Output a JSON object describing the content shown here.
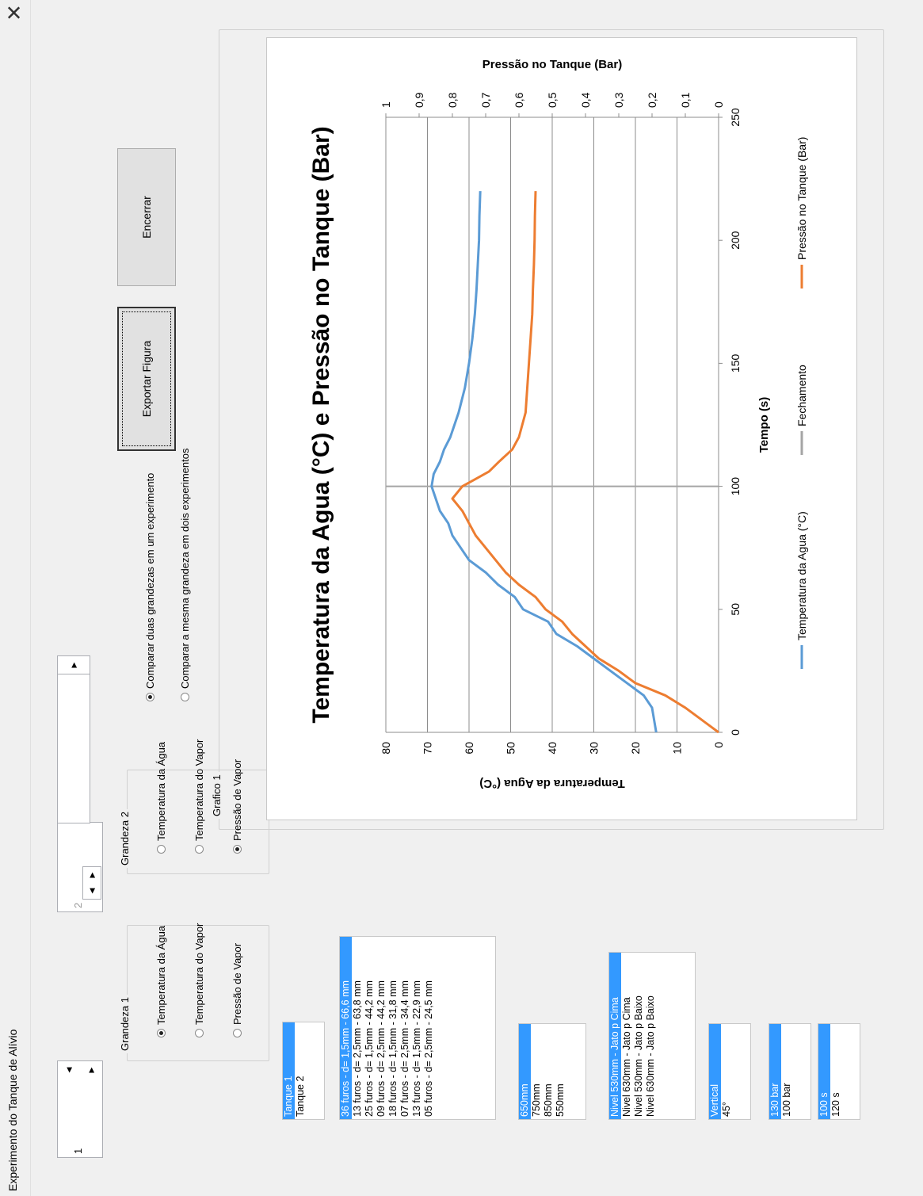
{
  "window": {
    "title": "Experimento do Tanque de Alívio",
    "close_icon": "close-icon"
  },
  "spinners": {
    "left_value": "1",
    "right_value": "2"
  },
  "grandeza1": {
    "label": "Grandeza 1",
    "options": [
      {
        "label": "Temperatura da Água",
        "checked": true
      },
      {
        "label": "Temperatura do Vapor",
        "checked": false
      },
      {
        "label": "Pressão de Vapor",
        "checked": false
      }
    ]
  },
  "grandeza2": {
    "label": "Grandeza 2",
    "options": [
      {
        "label": "Temperatura da Água",
        "checked": false
      },
      {
        "label": "Temperatura do Vapor",
        "checked": false
      },
      {
        "label": "Pressão de Vapor",
        "checked": true
      }
    ]
  },
  "compare": {
    "options": [
      {
        "label": "Comparar duas grandezas em um experimento",
        "checked": true
      },
      {
        "label": "Comparar a mesma grandeza em dois experimentos",
        "checked": false
      }
    ]
  },
  "lists": {
    "tanque": {
      "items": [
        "Tanque 1",
        "Tanque 2"
      ],
      "selected": 0
    },
    "furos": {
      "items": [
        "36 furos - d= 1,5mm - 66,6 mm",
        "13 furos - d= 2,5mm - 63,8 mm",
        "25 furos - d= 1,5mm - 44,2 mm",
        "09 furos - d= 2,5mm - 44,2 mm",
        "18 furos - d= 1,5mm - 31,8 mm",
        "07 furos - d= 2,5mm - 34,4 mm",
        "13 furos - d= 1,5mm - 22,9 mm",
        "05 furos - d= 2,5mm - 24,5 mm"
      ],
      "selected": 0
    },
    "profundidade": {
      "items": [
        "650mm",
        "750mm",
        "850mm",
        "550mm"
      ],
      "selected": 0
    },
    "nivel": {
      "items": [
        "Nivel 530mm - Jato p Cima",
        "Nivel 630mm - Jato p Cima",
        "Nivel 530mm - Jato p Baixo",
        "Nivel 630mm - Jato p Baixo"
      ],
      "selected": 0
    },
    "orientacao": {
      "items": [
        "Vertical",
        "45°"
      ],
      "selected": 0
    },
    "pressao": {
      "items": [
        "130 bar",
        "100 bar"
      ],
      "selected": 0
    },
    "tempo": {
      "items": [
        "100 s",
        "120 s"
      ],
      "selected": 0
    }
  },
  "buttons": {
    "export": "Exportar Figura",
    "close": "Encerrar"
  },
  "chart_frame": {
    "label": "Grafico 1"
  },
  "chart_data": {
    "type": "line",
    "title": "Temperatura da Agua (°C) e Pressão no Tanque (Bar)",
    "xlabel": "Tempo (s)",
    "ylabel": "Temperatura da Agua (°C)",
    "y2label": "Pressão no Tanque (Bar)",
    "xlim": [
      0,
      250
    ],
    "ylim": [
      0,
      80
    ],
    "y2lim": [
      0,
      1
    ],
    "x_ticks": [
      "0",
      "50",
      "100",
      "150",
      "200",
      "250"
    ],
    "y_ticks": [
      "0",
      "10",
      "20",
      "30",
      "40",
      "50",
      "60",
      "70",
      "80"
    ],
    "y2_ticks": [
      "0",
      "0,1",
      "0,2",
      "0,3",
      "0,4",
      "0,5",
      "0,6",
      "0,7",
      "0,8",
      "0,9",
      "1"
    ],
    "grid": true,
    "legend_position": "bottom",
    "vline_x": 100,
    "series": [
      {
        "name": "Temperatura da Agua (°C)",
        "color": "#5b9bd5",
        "axis": "left",
        "x": [
          0,
          5,
          10,
          15,
          20,
          25,
          30,
          35,
          40,
          45,
          50,
          55,
          60,
          65,
          70,
          75,
          80,
          85,
          90,
          95,
          100,
          105,
          110,
          115,
          120,
          130,
          140,
          150,
          160,
          170,
          180,
          190,
          200,
          210,
          220
        ],
        "y": [
          15,
          15.5,
          16,
          18,
          22,
          26,
          30,
          34,
          39,
          41,
          47,
          49,
          53,
          56,
          60,
          62,
          64,
          65,
          67,
          68,
          69,
          68.5,
          67,
          66,
          64.5,
          62.5,
          61,
          60,
          59.2,
          58.6,
          58.2,
          57.9,
          57.6,
          57.5,
          57.3
        ]
      },
      {
        "name": "Fechamento",
        "color": "#a5a5a5",
        "axis": "left"
      },
      {
        "name": "Pressão no Tanque (Bar)",
        "color": "#ed7d31",
        "axis": "right",
        "x": [
          0,
          5,
          10,
          15,
          20,
          25,
          30,
          35,
          40,
          45,
          50,
          55,
          60,
          65,
          70,
          75,
          80,
          85,
          90,
          95,
          100,
          103,
          106,
          110,
          115,
          120,
          125,
          130,
          140,
          150,
          160,
          170,
          180,
          190,
          200,
          210,
          220
        ],
        "y": [
          0,
          0.05,
          0.1,
          0.16,
          0.25,
          0.3,
          0.36,
          0.4,
          0.44,
          0.47,
          0.52,
          0.55,
          0.6,
          0.64,
          0.67,
          0.7,
          0.73,
          0.75,
          0.77,
          0.8,
          0.77,
          0.73,
          0.69,
          0.66,
          0.62,
          0.6,
          0.59,
          0.58,
          0.575,
          0.57,
          0.565,
          0.56,
          0.558,
          0.555,
          0.553,
          0.552,
          0.55
        ]
      }
    ]
  }
}
